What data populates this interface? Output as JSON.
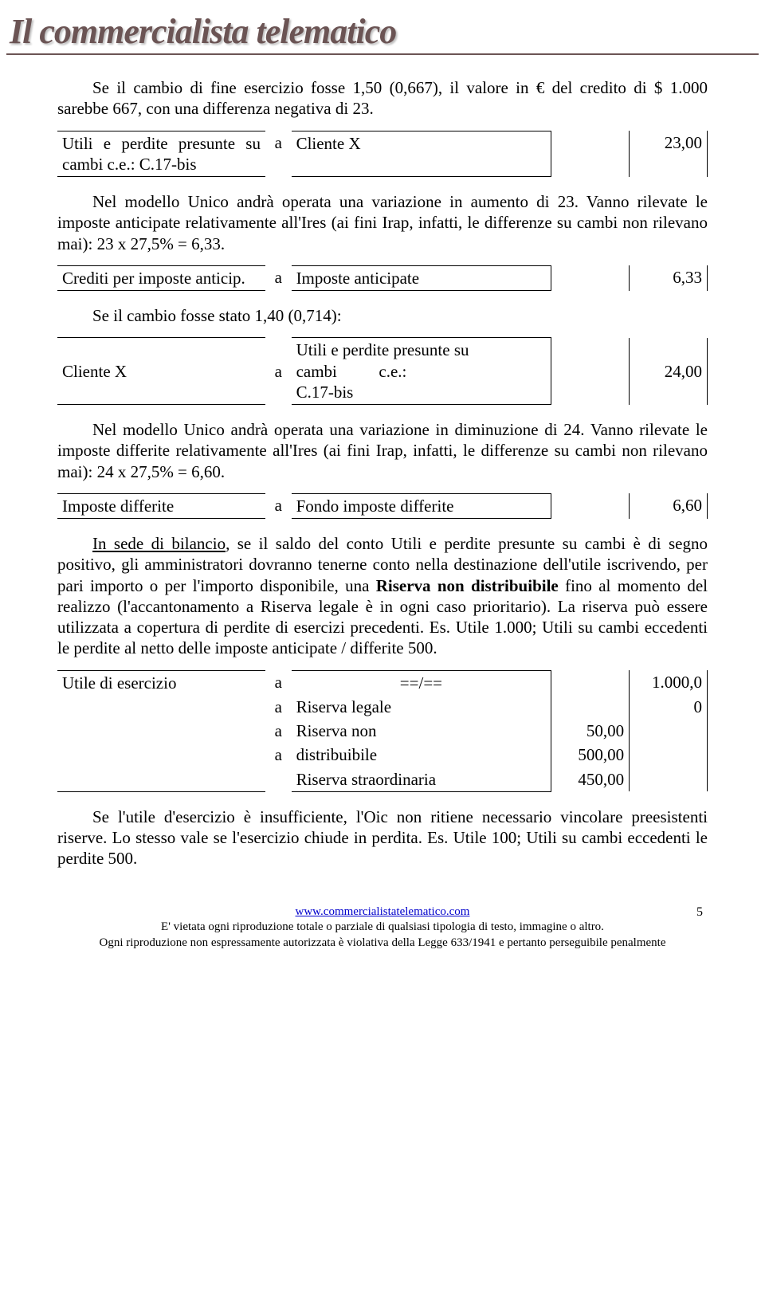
{
  "header": {
    "title": "Il commercialista telematico"
  },
  "p1": "Se il cambio di fine esercizio fosse 1,50 (0,667), il valore in € del credito di $ 1.000 sarebbe 667, con una differenza negativa di 23.",
  "entry1": {
    "left": "Utili e perdite presunte su cambi c.e.: C.17-bis",
    "a": "a",
    "mid": "Cliente X",
    "n2": "23,00"
  },
  "p2": "Nel modello Unico andrà operata una variazione in aumento di 23. Vanno rilevate le imposte anticipate relativamente all'Ires (ai fini Irap, infatti, le differenze su cambi non rilevano mai): 23 x 27,5% = 6,33.",
  "entry2": {
    "left": "Crediti per imposte anticip.",
    "a": "a",
    "mid": "Imposte anticipate",
    "n2": "6,33"
  },
  "p3": "Se il cambio fosse stato 1,40 (0,714):",
  "entry3": {
    "left": "Cliente X",
    "a": "a",
    "mid": "Utili e perdite presunte su\ncambi c.e.: C.17-bis",
    "n2": "24,00"
  },
  "p4": "Nel modello Unico andrà operata una variazione in diminuzione di 24. Vanno rilevate le imposte differite relativamente all'Ires (ai fini Irap, infatti, le differenze su cambi non rilevano mai): 24 x 27,5% = 6,60.",
  "entry4": {
    "left": "Imposte differite",
    "a": "a",
    "mid": "Fondo imposte differite",
    "n2": "6,60"
  },
  "p5_lead": "In sede di bilancio",
  "p5_rest_a": ", se il saldo del conto Utili e perdite presunte su cambi è di segno positivo, gli amministratori dovranno tenerne conto nella destinazione dell'utile iscrivendo, per pari importo o per l'importo disponibile, una ",
  "p5_bold": "Riserva non distribuibile",
  "p5_rest_b": " fino al momento del realizzo (l'accantonamento a Riserva legale è in ogni caso prioritario). La riserva può essere utilizzata a copertura di perdite di esercizi precedenti. Es. Utile 1.000; Utili su cambi eccedenti le perdite al netto delle imposte anticipate / differite 500.",
  "entry5": {
    "rows": [
      {
        "left": "Utile di esercizio",
        "a": "a",
        "mid": "==/==",
        "n1": "",
        "n2": "1.000,0"
      },
      {
        "left": "",
        "a": "a",
        "mid": "Riserva legale",
        "n1": "",
        "n2": "0"
      },
      {
        "left": "",
        "a": "a",
        "mid": "Riserva non",
        "n1": "50,00",
        "n2": ""
      },
      {
        "left": "",
        "a": "a",
        "mid": "distribuibile",
        "n1": "500,00",
        "n2": ""
      },
      {
        "left": "",
        "a": "",
        "mid": "Riserva straordinaria",
        "n1": "450,00",
        "n2": ""
      }
    ]
  },
  "p6": "Se l'utile d'esercizio è insufficiente, l'Oic non ritiene necessario vincolare preesistenti riserve. Lo stesso vale se l'esercizio chiude in perdita. Es. Utile 100; Utili su cambi eccedenti le perdite 500.",
  "footer": {
    "url": "www.commercialistatelematico.com",
    "l2": "E' vietata ogni riproduzione totale o parziale di qualsiasi tipologia di testo, immagine o altro.",
    "l3": "Ogni riproduzione non espressamente autorizzata è violativa della Legge 633/1941 e pertanto perseguibile penalmente",
    "page": "5"
  }
}
